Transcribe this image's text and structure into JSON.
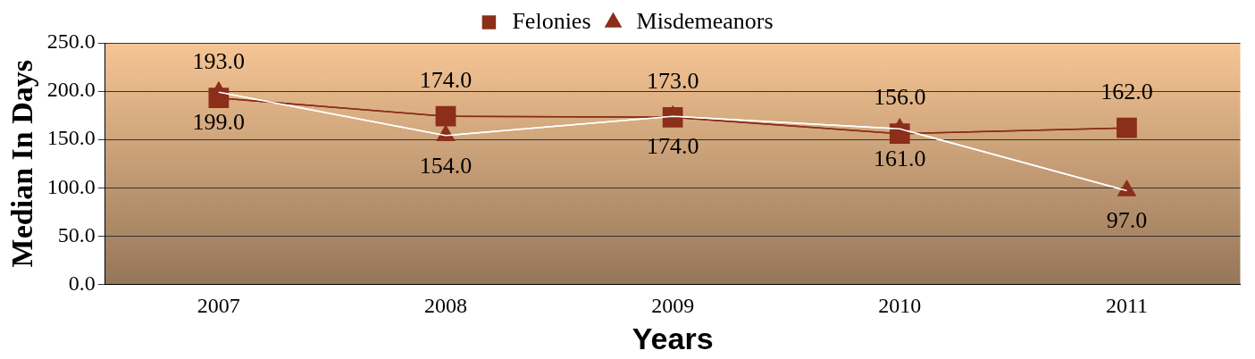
{
  "chart_data": {
    "type": "line",
    "xlabel": "Years",
    "ylabel": "Median In Days",
    "categories": [
      "2007",
      "2008",
      "2009",
      "2010",
      "2011"
    ],
    "series": [
      {
        "name": "Felonies",
        "color": "#8b2e1a",
        "marker": "square",
        "values": [
          193,
          174,
          173,
          156,
          162
        ],
        "value_labels": [
          "193.0",
          "174.0",
          "173.0",
          "156.0",
          "162.0"
        ]
      },
      {
        "name": "Misdemeanors",
        "color": "#ffffff",
        "marker": "triangle",
        "values": [
          199,
          154,
          174,
          161,
          97
        ],
        "value_labels": [
          "199.0",
          "154.0",
          "174.0",
          "161.0",
          "97.0"
        ]
      }
    ],
    "ylim": [
      0,
      250
    ],
    "yticks": [
      {
        "value": 0,
        "label": "0.0"
      },
      {
        "value": 50,
        "label": "50.0"
      },
      {
        "value": 100,
        "label": "100.0"
      },
      {
        "value": 150,
        "label": "150.0"
      },
      {
        "value": 200,
        "label": "200.0"
      },
      {
        "value": 250,
        "label": "250.0"
      }
    ],
    "grid": "y",
    "legend": "top"
  }
}
